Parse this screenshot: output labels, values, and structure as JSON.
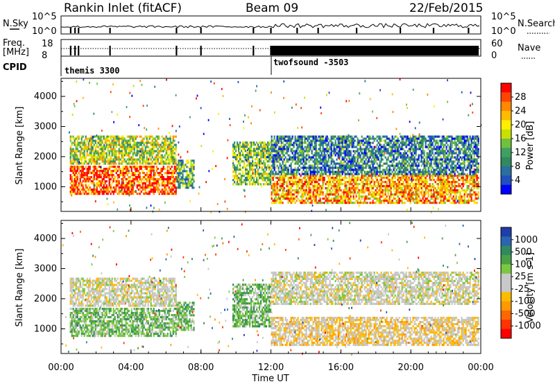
{
  "header": {
    "title": "Rankin Inlet (fitACF)",
    "beam": "Beam 09",
    "date": "22/Feb/2015"
  },
  "status_panels": {
    "nsky_label": "N.Sky",
    "nsky_ticks": [
      "10^5",
      "10^0"
    ],
    "nsearch_label": "N.Search",
    "nsearch_ticks": [
      "10^5",
      "10^0"
    ],
    "freq_label_1": "Freq.",
    "freq_label_2": "[MHz]",
    "freq_ticks": [
      "18",
      "8"
    ],
    "nave_label": "Nave",
    "nave_ticks": [
      "60",
      "0"
    ],
    "cpid_label": "CPID",
    "modes": [
      {
        "name": "themis",
        "id": "3300",
        "start_hour": 0
      },
      {
        "name": "twofsound",
        "id": "-3503",
        "start_hour": 12
      }
    ]
  },
  "colorbars": {
    "power": {
      "label": "Power [dB]",
      "ticks": [
        "28",
        "24",
        "20",
        "16",
        "12",
        "8",
        "4"
      ],
      "colors": [
        "#ff0000",
        "#ff4400",
        "#ff8800",
        "#ffbb00",
        "#ffee00",
        "#c8e000",
        "#70c040",
        "#40a060",
        "#2f8a60",
        "#2a6fa0",
        "#2050c0",
        "#0000ff"
      ]
    },
    "velocity": {
      "label": "Velocity [m s-1]",
      "ticks": [
        "1000",
        "500",
        "100",
        "25",
        "-25",
        "-100",
        "-500",
        "-1000"
      ],
      "colors": [
        "#1e3ea8",
        "#2a66b0",
        "#2f8a60",
        "#4aa048",
        "#7ac840",
        "#c8c8c8",
        "#c8c8c8",
        "#ffbb00",
        "#ff9900",
        "#ff6600",
        "#ff3300",
        "#ff0000"
      ]
    }
  },
  "axes": {
    "ylabel": "Slant Range [km]",
    "yticks": [
      "4000",
      "3000",
      "2000",
      "1000"
    ],
    "xticks": [
      "00:00",
      "04:00",
      "08:00",
      "12:00",
      "16:00",
      "20:00",
      "00:00"
    ],
    "xlabel": "Time UT"
  },
  "chart_data": [
    {
      "type": "heatmap",
      "title": "Rankin Inlet (fitACF)",
      "xlabel": "Time UT",
      "ylabel": "Slant Range [km]",
      "colorbar_label": "Power [dB]",
      "xlim_hours": [
        0,
        24
      ],
      "ylim_km": [
        180,
        4600
      ],
      "color_range": [
        0,
        30
      ],
      "regions": [
        {
          "t_start": 0.5,
          "t_end": 6.6,
          "r_start": 800,
          "r_end": 1700,
          "value": 26
        },
        {
          "t_start": 0.5,
          "t_end": 6.6,
          "r_start": 1800,
          "r_end": 2700,
          "value": 16
        },
        {
          "t_start": 6.6,
          "t_end": 7.6,
          "r_start": 1000,
          "r_end": 1900,
          "value": 12
        },
        {
          "t_start": 9.8,
          "t_end": 12.0,
          "r_start": 1100,
          "r_end": 2500,
          "value": 14
        },
        {
          "t_start": 12.0,
          "t_end": 23.9,
          "r_start": 500,
          "r_end": 1400,
          "value": 22
        },
        {
          "t_start": 12.0,
          "t_end": 23.9,
          "r_start": 1400,
          "r_end": 2700,
          "value": 8
        }
      ]
    },
    {
      "type": "heatmap",
      "xlabel": "Time UT",
      "ylabel": "Slant Range [km]",
      "colorbar_label": "Velocity [m s-1]",
      "xlim_hours": [
        0,
        24
      ],
      "ylim_km": [
        180,
        4600
      ],
      "color_range": [
        -1000,
        1000
      ],
      "regions": [
        {
          "t_start": 0.5,
          "t_end": 6.6,
          "r_start": 800,
          "r_end": 1700,
          "value": 300
        },
        {
          "t_start": 0.5,
          "t_end": 6.6,
          "r_start": 1800,
          "r_end": 2700,
          "value": 0
        },
        {
          "t_start": 6.6,
          "t_end": 7.6,
          "r_start": 1000,
          "r_end": 1900,
          "value": 300
        },
        {
          "t_start": 9.8,
          "t_end": 12.0,
          "r_start": 1100,
          "r_end": 2500,
          "value": 300
        },
        {
          "t_start": 12.0,
          "t_end": 23.9,
          "r_start": 500,
          "r_end": 1400,
          "value": -150
        },
        {
          "t_start": 12.0,
          "t_end": 23.9,
          "r_start": 1800,
          "r_end": 2900,
          "value": 0
        }
      ]
    }
  ]
}
